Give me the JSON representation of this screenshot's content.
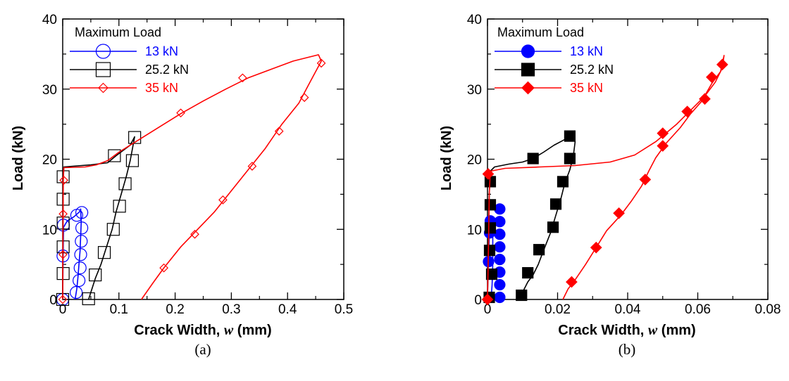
{
  "chart_data": [
    {
      "type": "line",
      "panel_label": "(a)",
      "xlabel_prefix": "Crack Width, ",
      "xlabel_var": "w",
      "xlabel_suffix": " (mm)",
      "ylabel": "Load (kN)",
      "xlim": [
        0,
        0.5
      ],
      "ylim": [
        0,
        40
      ],
      "xticks": [
        0,
        0.1,
        0.2,
        0.3,
        0.4,
        0.5
      ],
      "xtick_labels": [
        "0",
        "0.1",
        "0.2",
        "0.3",
        "0.4",
        "0.5"
      ],
      "yticks": [
        0,
        10,
        20,
        30,
        40
      ],
      "ytick_labels": [
        "0",
        "10",
        "20",
        "30",
        "40"
      ],
      "legend_title": "Maximum Load",
      "legend_placement": "top-left",
      "marker_fill": "open",
      "series": [
        {
          "name": "13 kN",
          "color": "#0000ff",
          "marker": "circle",
          "curve": [
            [
              0,
              0
            ],
            [
              0.0005,
              4
            ],
            [
              0.001,
              8
            ],
            [
              0.0015,
              10.3
            ],
            [
              0.008,
              11.2
            ],
            [
              0.02,
              11.8
            ],
            [
              0.03,
              12.5
            ],
            [
              0.032,
              12.9
            ],
            [
              0.033,
              11
            ],
            [
              0.032,
              9
            ],
            [
              0.031,
              7
            ],
            [
              0.029,
              5
            ],
            [
              0.027,
              3
            ],
            [
              0.025,
              1.5
            ],
            [
              0.022,
              0
            ]
          ],
          "markers": [
            [
              0,
              0
            ],
            [
              0.0005,
              6.2
            ],
            [
              0.0012,
              10.6
            ],
            [
              0.025,
              12
            ],
            [
              0.034,
              12.4
            ],
            [
              0.034,
              10.2
            ],
            [
              0.033,
              8.3
            ],
            [
              0.032,
              6.4
            ],
            [
              0.031,
              4.5
            ],
            [
              0.029,
              2.7
            ],
            [
              0.024,
              1
            ]
          ]
        },
        {
          "name": "25.2 kN",
          "color": "#000000",
          "marker": "square",
          "curve": [
            [
              0,
              0
            ],
            [
              0.0005,
              10
            ],
            [
              0.001,
              17
            ],
            [
              0.002,
              18.9
            ],
            [
              0.05,
              19.2
            ],
            [
              0.08,
              19.5
            ],
            [
              0.095,
              20.5
            ],
            [
              0.12,
              22
            ],
            [
              0.128,
              23.2
            ],
            [
              0.124,
              21.5
            ],
            [
              0.12,
              19.8
            ],
            [
              0.113,
              17.5
            ],
            [
              0.104,
              15
            ],
            [
              0.095,
              12.5
            ],
            [
              0.088,
              10
            ],
            [
              0.078,
              7.5
            ],
            [
              0.068,
              5
            ],
            [
              0.058,
              3
            ],
            [
              0.05,
              1
            ],
            [
              0.046,
              0
            ]
          ],
          "markers": [
            [
              0,
              0
            ],
            [
              0.0008,
              3.7
            ],
            [
              0.0008,
              7.5
            ],
            [
              0.0008,
              10.9
            ],
            [
              0.0008,
              14.3
            ],
            [
              0.0008,
              17.5
            ],
            [
              0.092,
              20.5
            ],
            [
              0.128,
              23.1
            ],
            [
              0.124,
              19.8
            ],
            [
              0.111,
              16.5
            ],
            [
              0.101,
              13.3
            ],
            [
              0.09,
              10
            ],
            [
              0.074,
              6.7
            ],
            [
              0.058,
              3.5
            ],
            [
              0.046,
              0.1
            ]
          ]
        },
        {
          "name": "35 kN",
          "color": "#ff0000",
          "marker": "diamond",
          "curve": [
            [
              0,
              0
            ],
            [
              0.0005,
              10
            ],
            [
              0.001,
              17
            ],
            [
              0.002,
              18.8
            ],
            [
              0.04,
              18.9
            ],
            [
              0.06,
              19.2
            ],
            [
              0.08,
              19.8
            ],
            [
              0.1,
              21
            ],
            [
              0.13,
              22.5
            ],
            [
              0.17,
              24.5
            ],
            [
              0.21,
              26.5
            ],
            [
              0.25,
              28.3
            ],
            [
              0.29,
              30
            ],
            [
              0.33,
              31.6
            ],
            [
              0.37,
              32.8
            ],
            [
              0.41,
              34
            ],
            [
              0.44,
              34.6
            ],
            [
              0.455,
              34.9
            ],
            [
              0.46,
              34
            ],
            [
              0.44,
              31
            ],
            [
              0.42,
              28
            ],
            [
              0.39,
              25
            ],
            [
              0.36,
              21.5
            ],
            [
              0.33,
              18.5
            ],
            [
              0.3,
              15.5
            ],
            [
              0.27,
              12.5
            ],
            [
              0.24,
              10
            ],
            [
              0.21,
              7.5
            ],
            [
              0.18,
              4.5
            ],
            [
              0.16,
              2.3
            ],
            [
              0.14,
              0
            ]
          ],
          "markers": [
            [
              0,
              0
            ],
            [
              0.0005,
              6.4
            ],
            [
              0.0008,
              12.2
            ],
            [
              0.002,
              17
            ],
            [
              0.21,
              26.6
            ],
            [
              0.32,
              31.6
            ],
            [
              0.46,
              33.7
            ],
            [
              0.43,
              28.8
            ],
            [
              0.385,
              24
            ],
            [
              0.337,
              19
            ],
            [
              0.285,
              14.2
            ],
            [
              0.235,
              9.3
            ],
            [
              0.18,
              4.5
            ]
          ]
        }
      ]
    },
    {
      "type": "line",
      "panel_label": "(b)",
      "xlabel_prefix": "Crack Width, ",
      "xlabel_var": "w",
      "xlabel_suffix": " (mm)",
      "ylabel": "Load (kN)",
      "xlim": [
        0,
        0.08
      ],
      "ylim": [
        0,
        40
      ],
      "xticks": [
        0,
        0.02,
        0.04,
        0.06,
        0.08
      ],
      "xtick_labels": [
        "0",
        "0.02",
        "0.04",
        "0.06",
        "0.08"
      ],
      "yticks": [
        0,
        10,
        20,
        30,
        40
      ],
      "ytick_labels": [
        "0",
        "10",
        "20",
        "30",
        "40"
      ],
      "legend_title": "Maximum Load",
      "legend_placement": "top-left",
      "marker_fill": "filled",
      "series": [
        {
          "name": "13 kN",
          "color": "#0000ff",
          "marker": "circle",
          "curve": [
            [
              0,
              0
            ],
            [
              0.0001,
              3
            ],
            [
              0.0003,
              6
            ],
            [
              0.0005,
              9
            ],
            [
              0.0008,
              11
            ],
            [
              0.0012,
              11.5
            ],
            [
              0.0015,
              9
            ],
            [
              0.0015,
              5
            ],
            [
              0.0013,
              2
            ],
            [
              0.001,
              0
            ]
          ],
          "markers": [
            [
              0.0003,
              5.4
            ],
            [
              0.0006,
              9.5
            ],
            [
              0.0008,
              11.2
            ],
            [
              0.0035,
              12.9
            ],
            [
              0.0035,
              11.1
            ],
            [
              0.0035,
              9.3
            ],
            [
              0.0035,
              7.5
            ],
            [
              0.0035,
              5.7
            ],
            [
              0.0035,
              3.9
            ],
            [
              0.0035,
              2.1
            ],
            [
              0.0035,
              0.3
            ]
          ]
        },
        {
          "name": "25.2 kN",
          "color": "#000000",
          "marker": "square",
          "curve": [
            [
              0,
              0
            ],
            [
              0.0003,
              8
            ],
            [
              0.0005,
              15
            ],
            [
              0.0008,
              18.3
            ],
            [
              0.002,
              18.9
            ],
            [
              0.006,
              19.3
            ],
            [
              0.01,
              19.6
            ],
            [
              0.013,
              20.1
            ],
            [
              0.016,
              21
            ],
            [
              0.019,
              22
            ],
            [
              0.022,
              22.8
            ],
            [
              0.024,
              23.3
            ],
            [
              0.025,
              22.5
            ],
            [
              0.0245,
              20.5
            ],
            [
              0.0235,
              18.5
            ],
            [
              0.022,
              16.5
            ],
            [
              0.021,
              14.5
            ],
            [
              0.0195,
              12
            ],
            [
              0.018,
              9.5
            ],
            [
              0.016,
              7
            ],
            [
              0.0145,
              5
            ],
            [
              0.013,
              3.5
            ],
            [
              0.0115,
              2.5
            ],
            [
              0.0105,
              1.5
            ],
            [
              0.0095,
              0.5
            ],
            [
              0.0095,
              0
            ]
          ],
          "markers": [
            [
              0.0005,
              0.3
            ],
            [
              0.0012,
              3.6
            ],
            [
              0.0006,
              7
            ],
            [
              0.0008,
              10.2
            ],
            [
              0.0008,
              13.5
            ],
            [
              0.0008,
              16.8
            ],
            [
              0.013,
              20.1
            ],
            [
              0.0235,
              23.3
            ],
            [
              0.0235,
              20.1
            ],
            [
              0.0215,
              16.8
            ],
            [
              0.0195,
              13.6
            ],
            [
              0.0187,
              10.3
            ],
            [
              0.0147,
              7.1
            ],
            [
              0.0115,
              3.8
            ],
            [
              0.0097,
              0.6
            ]
          ]
        },
        {
          "name": "35 kN",
          "color": "#ff0000",
          "marker": "diamond",
          "curve": [
            [
              0,
              0
            ],
            [
              0.0003,
              8
            ],
            [
              0.0005,
              15
            ],
            [
              0.0008,
              18.3
            ],
            [
              0.005,
              18.7
            ],
            [
              0.015,
              18.9
            ],
            [
              0.025,
              19.1
            ],
            [
              0.035,
              19.6
            ],
            [
              0.042,
              20.6
            ],
            [
              0.048,
              22.5
            ],
            [
              0.054,
              25
            ],
            [
              0.058,
              27
            ],
            [
              0.062,
              29
            ],
            [
              0.065,
              31
            ],
            [
              0.067,
              33
            ],
            [
              0.0675,
              34.8
            ],
            [
              0.067,
              33.6
            ],
            [
              0.0665,
              32.5
            ],
            [
              0.064,
              30.8
            ],
            [
              0.061,
              28.2
            ],
            [
              0.058,
              26.5
            ],
            [
              0.055,
              24.5
            ],
            [
              0.051,
              22.3
            ],
            [
              0.048,
              20.2
            ],
            [
              0.046,
              18.3
            ],
            [
              0.044,
              16.2
            ],
            [
              0.041,
              14
            ],
            [
              0.038,
              12
            ],
            [
              0.034,
              9.8
            ],
            [
              0.031,
              7.4
            ],
            [
              0.028,
              5
            ],
            [
              0.025,
              2.8
            ],
            [
              0.023,
              1.5
            ],
            [
              0.0215,
              0
            ]
          ],
          "markers": [
            [
              0,
              0
            ],
            [
              0.0002,
              17.9
            ],
            [
              0.024,
              2.5
            ],
            [
              0.031,
              7.4
            ],
            [
              0.0375,
              12.3
            ],
            [
              0.045,
              17.1
            ],
            [
              0.05,
              21.9
            ],
            [
              0.05,
              23.7
            ],
            [
              0.057,
              26.8
            ],
            [
              0.062,
              28.6
            ],
            [
              0.064,
              31.7
            ],
            [
              0.067,
              33.5
            ]
          ]
        }
      ]
    }
  ]
}
